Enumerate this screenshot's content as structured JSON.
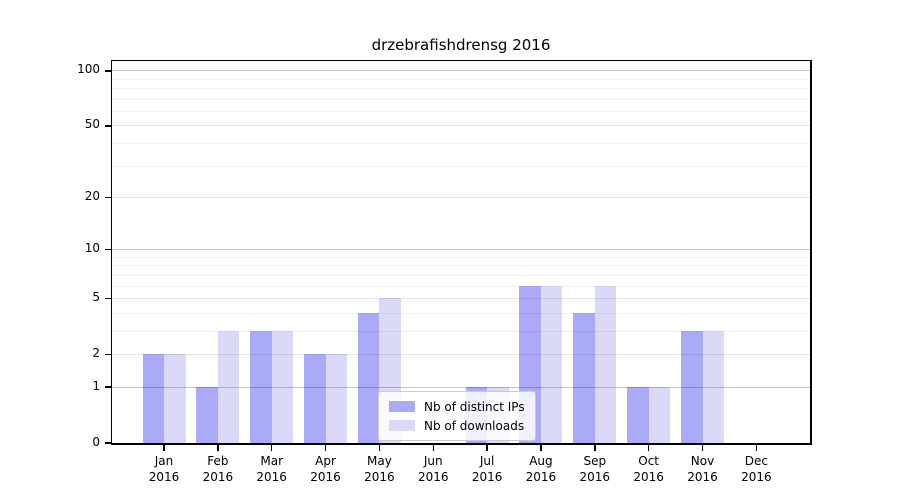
{
  "title": "drzebrafishdrensg 2016",
  "colors": {
    "bar_distinct_ips": "#aaaaf8",
    "bar_downloads": "#dadaf8",
    "spine": "#000000",
    "grid_major_strong": "rgba(0,0,0,0.22)",
    "grid_major_light": "rgba(0,0,0,0.10)",
    "grid_minor": "rgba(0,0,0,0.05)",
    "background": "#ffffff"
  },
  "chart_data": {
    "type": "bar",
    "title": "drzebrafishdrensg 2016",
    "year": "2016",
    "categories": [
      "Jan",
      "Feb",
      "Mar",
      "Apr",
      "May",
      "Jun",
      "Jul",
      "Aug",
      "Sep",
      "Oct",
      "Nov",
      "Dec"
    ],
    "series": [
      {
        "name": "Nb of distinct IPs",
        "color": "#aaaaf8",
        "values": [
          2,
          1,
          3,
          2,
          4,
          0,
          1,
          6,
          4,
          1,
          3,
          0
        ]
      },
      {
        "name": "Nb of downloads",
        "color": "#dadaf8",
        "values": [
          2,
          3,
          3,
          2,
          5,
          0,
          1,
          6,
          6,
          1,
          3,
          0
        ]
      }
    ],
    "xlabel": "",
    "ylabel": "",
    "yscale": "log1p",
    "yticks": [
      0,
      1,
      2,
      5,
      10,
      20,
      50,
      100
    ],
    "yticks_strong": [
      1,
      10,
      100
    ],
    "yticks_minor": [
      3,
      4,
      6,
      7,
      8,
      9,
      30,
      40,
      60,
      70,
      80,
      90
    ],
    "ylim": [
      0,
      113
    ],
    "grid": true,
    "legend_position": "lower center"
  },
  "legend": {
    "items": [
      {
        "label": "Nb of distinct IPs",
        "swatch": "bar_distinct_ips"
      },
      {
        "label": "Nb of downloads",
        "swatch": "bar_downloads"
      }
    ]
  }
}
